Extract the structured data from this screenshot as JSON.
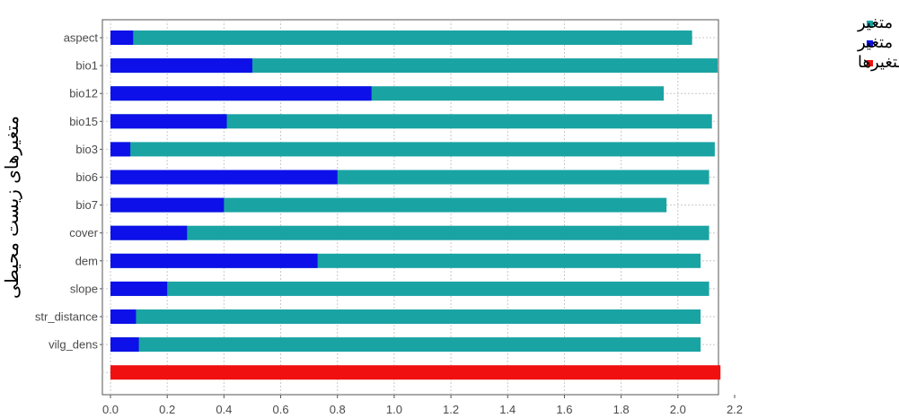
{
  "chart_data": {
    "type": "bar",
    "orientation": "horizontal",
    "stacked": false,
    "title": "",
    "xlabel": "",
    "ylabel": "متغیرهای زیست محیطی",
    "xlim": [
      0,
      2.2
    ],
    "xticks": [
      "0.0",
      "0.2",
      "0.4",
      "0.6",
      "0.8",
      "1.0",
      "1.2",
      "1.4",
      "1.6",
      "1.8",
      "2.0",
      "2.2"
    ],
    "grid": true,
    "legend_position": "right",
    "categories": [
      "aspect",
      "bio1",
      "bio12",
      "bio15",
      "bio3",
      "bio6",
      "bio7",
      "cover",
      "dem",
      "slope",
      "str_distance",
      "vilg_dens",
      ""
    ],
    "series": [
      {
        "name": "بدون متغیر",
        "color": "#1aa3a3",
        "values": [
          2.05,
          2.14,
          1.95,
          2.12,
          2.13,
          2.11,
          1.96,
          2.11,
          2.08,
          2.11,
          2.08,
          2.08,
          null
        ]
      },
      {
        "name": "با یک متغیر",
        "color": "#0d10e8",
        "values": [
          0.08,
          0.5,
          0.92,
          0.41,
          0.07,
          0.8,
          0.4,
          0.27,
          0.73,
          0.2,
          0.09,
          0.1,
          null
        ]
      },
      {
        "name": "تمامی متغیرها",
        "color": "#f01010",
        "values": [
          null,
          null,
          null,
          null,
          null,
          null,
          null,
          null,
          null,
          null,
          null,
          null,
          2.15
        ]
      }
    ]
  }
}
